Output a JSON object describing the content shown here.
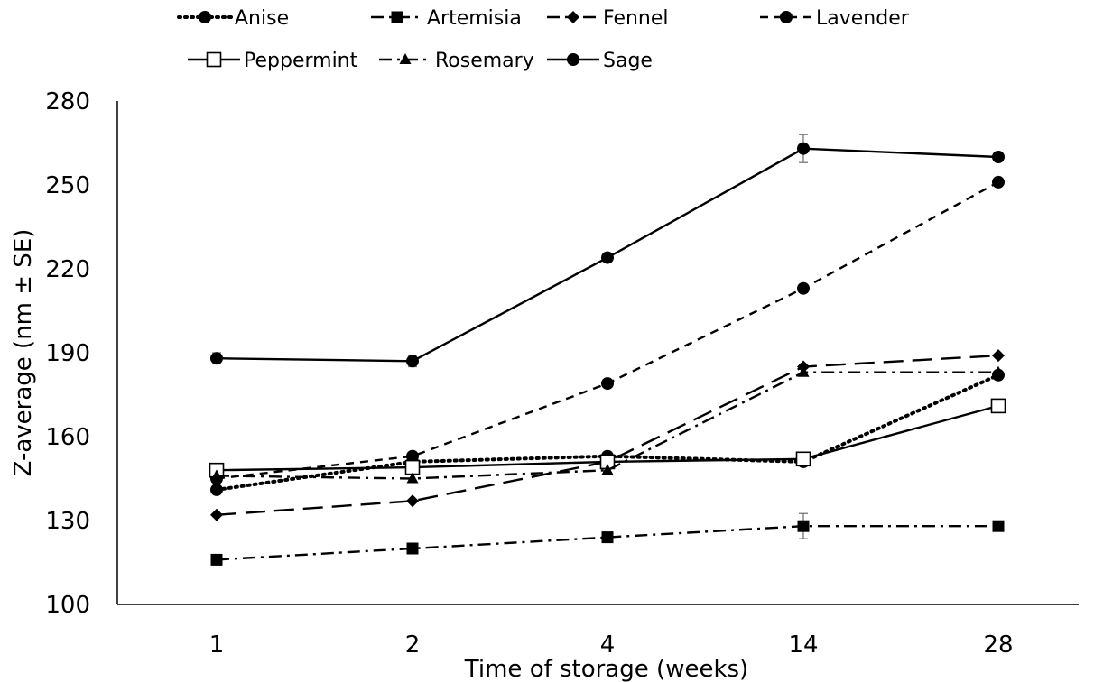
{
  "chart_data": {
    "type": "line",
    "title": "",
    "xlabel": "Time of storage (weeks)",
    "ylabel": "Z-average (nm ± SE)",
    "categories": [
      "1",
      "2",
      "4",
      "14",
      "28"
    ],
    "ylim": [
      100,
      280
    ],
    "yticks": [
      100,
      130,
      160,
      190,
      220,
      250,
      280
    ],
    "grid": false,
    "legend_position": "top",
    "series": [
      {
        "name": "Anise",
        "values": [
          141,
          151,
          153,
          151,
          182
        ],
        "errors": [
          0,
          0,
          0,
          0,
          0
        ],
        "dash": "dotted",
        "marker": "circle"
      },
      {
        "name": "Artemisia",
        "values": [
          116,
          120,
          124,
          128,
          128
        ],
        "errors": [
          0,
          1.5,
          0,
          4.5,
          0
        ],
        "dash": "dashdot",
        "marker": "square"
      },
      {
        "name": "Fennel",
        "values": [
          132,
          137,
          151,
          185,
          189
        ],
        "errors": [
          0,
          0,
          0,
          0,
          0
        ],
        "dash": "longdash",
        "marker": "diamond"
      },
      {
        "name": "Lavender",
        "values": [
          145,
          153,
          179,
          213,
          251
        ],
        "errors": [
          0,
          0,
          0,
          1.5,
          0
        ],
        "dash": "dash",
        "marker": "circle"
      },
      {
        "name": "Peppermint",
        "values": [
          148,
          149,
          151,
          152,
          171
        ],
        "errors": [
          0,
          0,
          0,
          0,
          0
        ],
        "dash": "solid",
        "marker": "open-square"
      },
      {
        "name": "Rosemary",
        "values": [
          146,
          145,
          148,
          183,
          183
        ],
        "errors": [
          0,
          0,
          0,
          0,
          0
        ],
        "dash": "dashdot",
        "marker": "triangle"
      },
      {
        "name": "Sage",
        "values": [
          188,
          187,
          224,
          263,
          260
        ],
        "errors": [
          2,
          2,
          0,
          5,
          0
        ],
        "dash": "solid",
        "marker": "circle"
      }
    ]
  }
}
